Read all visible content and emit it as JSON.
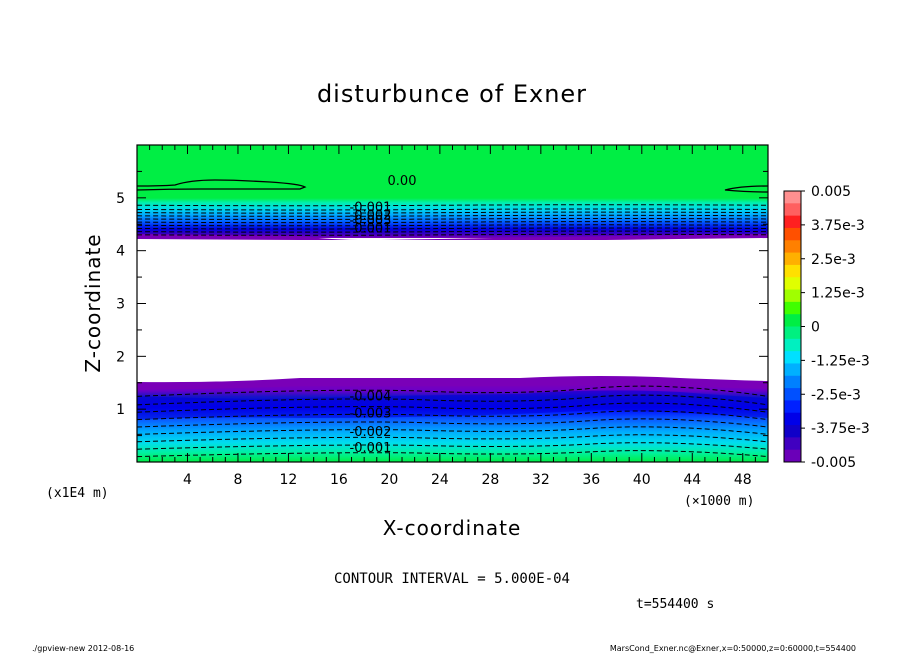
{
  "chart_data": {
    "type": "heatmap",
    "title": "disturbunce of Exner",
    "xlabel": "X-coordinate",
    "ylabel": "Z-coordinate",
    "x_unit": "(×1000 m)",
    "y_unit": "(x1E4 m)",
    "xlim": [
      0,
      50
    ],
    "ylim": [
      0,
      6
    ],
    "x_ticks": [
      4,
      8,
      12,
      16,
      20,
      24,
      28,
      32,
      36,
      40,
      44,
      48
    ],
    "y_ticks": [
      1,
      2,
      3,
      4,
      5
    ],
    "colorbar": {
      "range": [
        -0.005,
        0.005
      ],
      "tick_labels": [
        "0.005",
        "3.75e-3",
        "2.5e-3",
        "1.25e-3",
        "0",
        "-1.25e-3",
        "-2.5e-3",
        "-3.75e-3",
        "-0.005"
      ]
    },
    "contour_labels": [
      {
        "text": "0.00",
        "x": 21,
        "z": 5.3
      },
      {
        "text": "-0.001",
        "x": 18.5,
        "z": 4.8
      },
      {
        "text": "-0.002",
        "x": 18.5,
        "z": 4.65
      },
      {
        "text": "-0.003",
        "x": 18.5,
        "z": 4.55
      },
      {
        "text": "-0.001",
        "x": 18.5,
        "z": 4.4
      },
      {
        "text": "-0.004",
        "x": 18.5,
        "z": 1.22
      },
      {
        "text": "-0.003",
        "x": 18.5,
        "z": 0.9
      },
      {
        "text": "-0.002",
        "x": 18.5,
        "z": 0.55
      },
      {
        "text": "-0.001",
        "x": 18.5,
        "z": 0.25
      }
    ],
    "contour_interval_text": "CONTOUR INTERVAL = 5.000E-04",
    "time_text": "t=554400 s"
  },
  "footer": {
    "left": "./gpview-new   2012-08-16",
    "right": "MarsCond_Exner.nc@Exner,x=0:50000,z=0:60000,t=554400"
  }
}
